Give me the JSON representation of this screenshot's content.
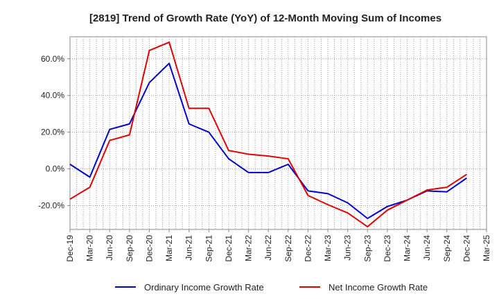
{
  "chart_data": {
    "type": "line",
    "title": "[2819]  Trend of Growth Rate (YoY) of 12-Month Moving Sum of Incomes",
    "xlabel": "",
    "ylabel": "",
    "x_ticks": [
      "Dec-19",
      "Mar-20",
      "Jun-20",
      "Sep-20",
      "Dec-20",
      "Mar-21",
      "Jun-21",
      "Sep-21",
      "Dec-21",
      "Mar-22",
      "Jun-22",
      "Sep-22",
      "Dec-22",
      "Mar-23",
      "Jun-23",
      "Sep-23",
      "Dec-23",
      "Mar-24",
      "Jun-24",
      "Sep-24",
      "Dec-24",
      "Mar-25"
    ],
    "y_ticks": [
      {
        "value": 60,
        "label": "60.0%"
      },
      {
        "value": 40,
        "label": "40.0%"
      },
      {
        "value": 20,
        "label": "20.0%"
      },
      {
        "value": 0,
        "label": "0.0%"
      },
      {
        "value": -20,
        "label": "-20.0%"
      }
    ],
    "ylim": [
      -33,
      72
    ],
    "grid": true,
    "legend_position": "bottom",
    "series": [
      {
        "name": "Ordinary Income Growth Rate",
        "color": "#0000cc",
        "values": [
          2.5,
          -4.5,
          21.5,
          24.5,
          47,
          57.5,
          24.5,
          20,
          5.5,
          -2,
          -2,
          2.5,
          -12,
          -13.5,
          -18.5,
          -27,
          -20.5,
          -17,
          -12,
          -12.5,
          -5
        ]
      },
      {
        "name": "Net Income Growth Rate",
        "color": "#e00000",
        "values": [
          -16.5,
          -10,
          15.5,
          18.5,
          64.5,
          69,
          33,
          33,
          10,
          8,
          7,
          5.5,
          -14.5,
          -19.5,
          -24,
          -31.5,
          -22.5,
          -17,
          -11.5,
          -10,
          -3
        ]
      }
    ]
  }
}
